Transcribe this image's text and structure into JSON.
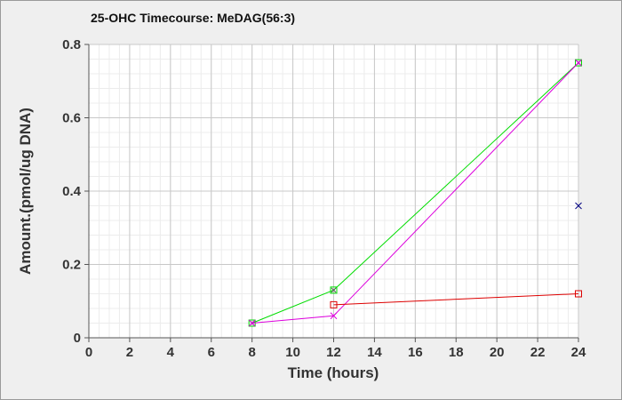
{
  "chart_data": {
    "type": "line",
    "title": "25-OHC Timecourse: MeDAG(56:3)",
    "xlabel": "Time (hours)",
    "ylabel": "Amount.(pmol/ug DNA)",
    "xlim": [
      0,
      24
    ],
    "ylim": [
      0,
      0.8
    ],
    "xticks": [
      0,
      2,
      4,
      6,
      8,
      10,
      12,
      14,
      16,
      18,
      20,
      22,
      24
    ],
    "yticks": [
      0,
      0.2,
      0.4,
      0.6,
      0.8
    ],
    "grid": true,
    "legend": "none",
    "series": [
      {
        "color": "#00dd00",
        "marker": "square-x",
        "connected": true,
        "points": [
          [
            8,
            0.04
          ],
          [
            12,
            0.13
          ],
          [
            24,
            0.75
          ]
        ]
      },
      {
        "color": "#dd00dd",
        "marker": "x",
        "connected": true,
        "points": [
          [
            8,
            0.04
          ],
          [
            12,
            0.06
          ],
          [
            24,
            0.75
          ]
        ]
      },
      {
        "color": "#dd0000",
        "marker": "square",
        "connected": true,
        "points": [
          [
            12,
            0.09
          ],
          [
            24,
            0.12
          ]
        ]
      },
      {
        "color": "#000080",
        "marker": "x",
        "connected": false,
        "points": [
          [
            24,
            0.36
          ]
        ]
      }
    ]
  }
}
